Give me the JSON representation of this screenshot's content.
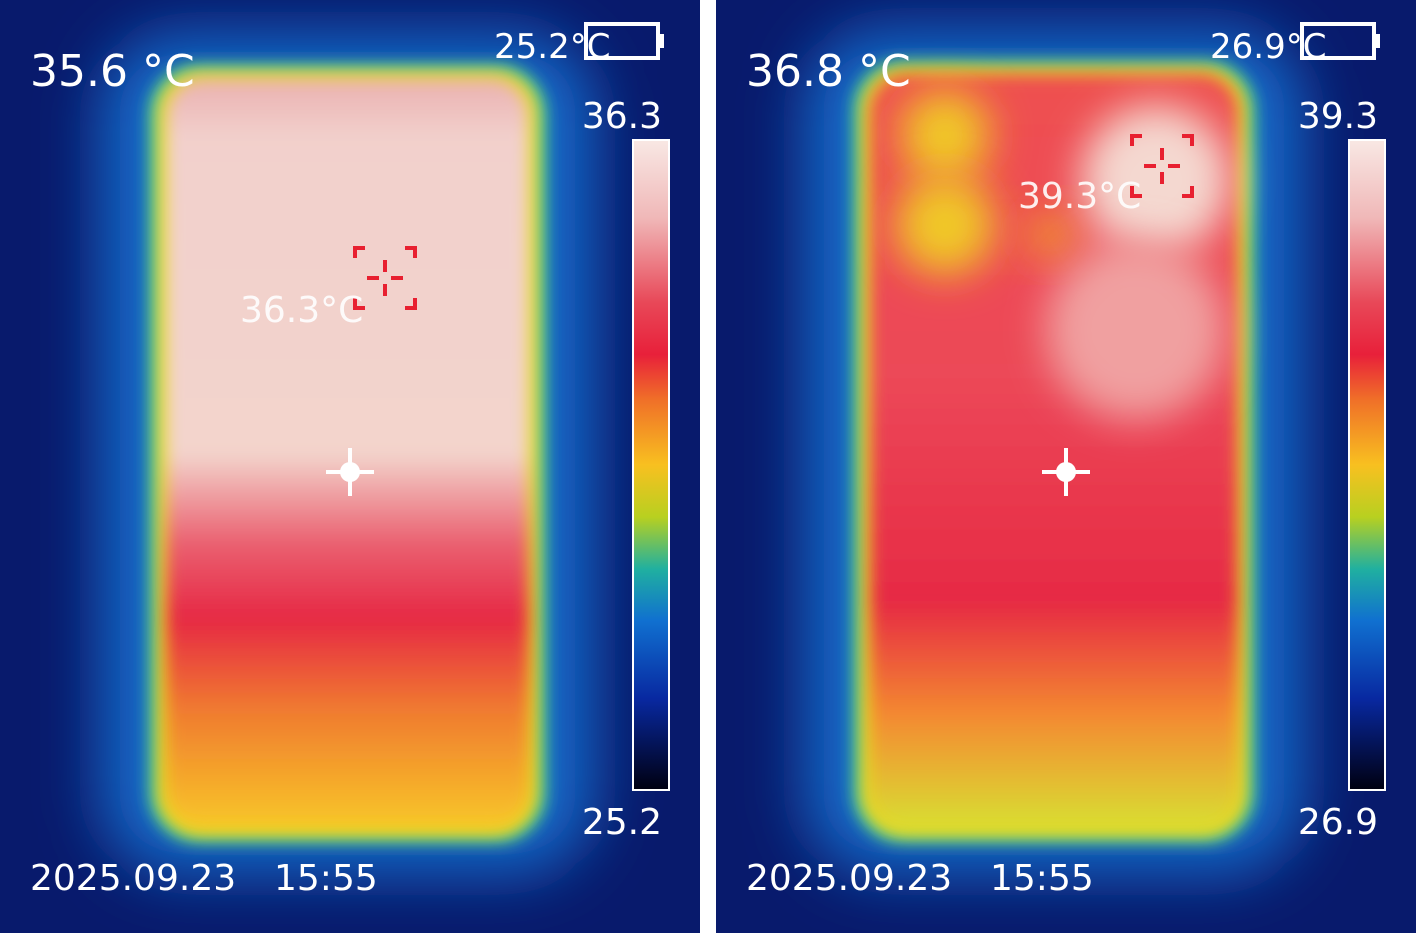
{
  "panels": [
    {
      "center_temp": "35.6 °C",
      "corner_temp": "25.2°C",
      "scale_max": "36.3",
      "scale_min": "25.2",
      "hotspot_label": "36.3°C",
      "date": "2025.09.23",
      "time": "15:55"
    },
    {
      "center_temp": "36.8 °C",
      "corner_temp": "26.9°C",
      "scale_max": "39.3",
      "scale_min": "26.9",
      "hotspot_label": "39.3°C",
      "date": "2025.09.23",
      "time": "15:55"
    }
  ]
}
